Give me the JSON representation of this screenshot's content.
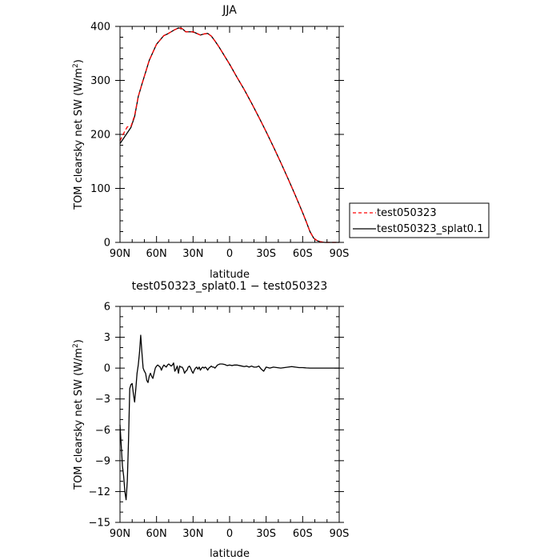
{
  "chart_data": [
    {
      "type": "line",
      "title": "JJA",
      "xlabel": "latitude",
      "ylabel": "TOM clearsky net SW (W/m²)",
      "ylabel_main": "TOM clearsky net SW (W/m",
      "ylabel_sup": "2",
      "ylabel_close": ")",
      "xlim": [
        90,
        -90
      ],
      "ylim": [
        0,
        400
      ],
      "xticks": [
        {
          "value": 90,
          "label": "90N"
        },
        {
          "value": 60,
          "label": "60N"
        },
        {
          "value": 30,
          "label": "30N"
        },
        {
          "value": 0,
          "label": "0"
        },
        {
          "value": -30,
          "label": "30S"
        },
        {
          "value": -60,
          "label": "60S"
        },
        {
          "value": -90,
          "label": "90S"
        }
      ],
      "yticks": [
        0,
        100,
        200,
        300,
        400
      ],
      "legend": {
        "placement": "right"
      },
      "series": [
        {
          "name": "test050323",
          "color": "#ff0000",
          "dash": "dashed",
          "x": [
            90,
            87,
            84,
            81,
            78,
            75,
            72,
            69,
            66,
            63,
            60,
            57,
            54,
            51,
            48,
            45,
            42,
            39,
            36,
            33,
            30,
            27,
            24,
            21,
            18,
            15,
            12,
            9,
            6,
            3,
            0,
            -6,
            -12,
            -18,
            -24,
            -30,
            -36,
            -42,
            -48,
            -54,
            -60,
            -63,
            -66,
            -69,
            -72,
            -75,
            -78,
            -81,
            -84,
            -87,
            -90
          ],
          "y": [
            188,
            202,
            214,
            215,
            235,
            270,
            293,
            315,
            337,
            352,
            367,
            375,
            383,
            386,
            390,
            394,
            397,
            396,
            390,
            390,
            390,
            387,
            384,
            386,
            387,
            382,
            373,
            363,
            352,
            341,
            330,
            306,
            283,
            258,
            232,
            205,
            177,
            148,
            118,
            87,
            55,
            38,
            20,
            8,
            3,
            1,
            0,
            0,
            0,
            0,
            0
          ]
        },
        {
          "name": "test050323_splat0.1",
          "color": "#000000",
          "dash": "solid",
          "x": [
            90,
            87,
            84,
            81,
            78,
            75,
            72,
            69,
            66,
            63,
            60,
            57,
            54,
            51,
            48,
            45,
            42,
            39,
            36,
            33,
            30,
            27,
            24,
            21,
            18,
            15,
            12,
            9,
            6,
            3,
            0,
            -6,
            -12,
            -18,
            -24,
            -30,
            -36,
            -42,
            -48,
            -54,
            -60,
            -63,
            -66,
            -69,
            -72,
            -75,
            -78,
            -81,
            -84,
            -87,
            -90
          ],
          "y": [
            183,
            193,
            203,
            213,
            233,
            270,
            293,
            315,
            337,
            352,
            367,
            375,
            383,
            386,
            390,
            394,
            397,
            396,
            390,
            390,
            390,
            387,
            384,
            386,
            387,
            382,
            373,
            363,
            352,
            341,
            330,
            306,
            283,
            258,
            232,
            205,
            177,
            148,
            118,
            87,
            55,
            38,
            20,
            8,
            3,
            1,
            0,
            0,
            0,
            0,
            0
          ]
        }
      ]
    },
    {
      "type": "line",
      "title": "test050323_splat0.1 − test050323",
      "xlabel": "latitude",
      "ylabel": "TOM clearsky net SW (W/m²)",
      "ylabel_main": "TOM clearsky net SW (W/m",
      "ylabel_sup": "2",
      "ylabel_close": ")",
      "xlim": [
        90,
        -90
      ],
      "ylim": [
        -15,
        6
      ],
      "xticks": [
        {
          "value": 90,
          "label": "90N"
        },
        {
          "value": 60,
          "label": "60N"
        },
        {
          "value": 30,
          "label": "30N"
        },
        {
          "value": 0,
          "label": "0"
        },
        {
          "value": -30,
          "label": "30S"
        },
        {
          "value": -60,
          "label": "60S"
        },
        {
          "value": -90,
          "label": "90S"
        }
      ],
      "yticks": [
        -15,
        -12,
        -9,
        -6,
        -3,
        0,
        3,
        6
      ],
      "series": [
        {
          "color": "#000000",
          "x": [
            90,
            89,
            88,
            87,
            86,
            85,
            84,
            83,
            82,
            81,
            80,
            79,
            78,
            77,
            76,
            75,
            74,
            73,
            72,
            71,
            70,
            69,
            68,
            67,
            66,
            65,
            64,
            63,
            62,
            61,
            60,
            59,
            58,
            57,
            56,
            55,
            54,
            53,
            52,
            51,
            50,
            49,
            48,
            47,
            46,
            45,
            44,
            43,
            42,
            41,
            40,
            39,
            38,
            37,
            36,
            35,
            34,
            33,
            32,
            31,
            30,
            29,
            28,
            27,
            26,
            25,
            24,
            23,
            22,
            21,
            20,
            19,
            18,
            17,
            16,
            15,
            14,
            13,
            12,
            10,
            8,
            6,
            4,
            2,
            0,
            -2,
            -4,
            -6,
            -8,
            -10,
            -12,
            -14,
            -16,
            -18,
            -20,
            -22,
            -24,
            -26,
            -28,
            -30,
            -33,
            -36,
            -39,
            -42,
            -45,
            -48,
            -51,
            -54,
            -57,
            -60,
            -63,
            -66,
            -69,
            -72,
            -75,
            -78,
            -81,
            -84,
            -87,
            -90
          ],
          "y": [
            -5.5,
            -7.5,
            -9.5,
            -10.5,
            -12,
            -12.8,
            -11,
            -7,
            -2,
            -1.6,
            -1.5,
            -2.5,
            -3.3,
            -2,
            -0.5,
            0.3,
            1.5,
            3.2,
            1.5,
            0,
            -0.3,
            -0.5,
            -1.2,
            -1.4,
            -0.8,
            -0.5,
            -0.8,
            -1,
            -0.5,
            0,
            0.2,
            0.3,
            0.2,
            0.1,
            -0.2,
            0.1,
            0.3,
            0.2,
            0.1,
            0.3,
            0.4,
            0.3,
            0.2,
            0.3,
            0.5,
            -0.3,
            -0.1,
            0.2,
            -0.5,
            0.2,
            0.1,
            0.1,
            -0.1,
            -0.5,
            -0.3,
            -0.2,
            0.1,
            0.2,
            0,
            -0.3,
            -0.5,
            -0.2,
            0,
            0.1,
            -0.1,
            0.1,
            -0.2,
            0,
            0.1,
            0,
            0.1,
            0,
            -0.2,
            0,
            0.1,
            0.2,
            0.1,
            0.1,
            0,
            0.3,
            0.4,
            0.4,
            0.35,
            0.25,
            0.3,
            0.25,
            0.3,
            0.3,
            0.25,
            0.2,
            0.15,
            0.2,
            0.1,
            0.2,
            0.1,
            0.1,
            0.2,
            -0.1,
            -0.3,
            0.1,
            0,
            0.1,
            0.05,
            0,
            0.05,
            0.1,
            0.15,
            0.1,
            0.05,
            0.05,
            0.02,
            0,
            0,
            0,
            0,
            0,
            0,
            0,
            0,
            0
          ]
        }
      ]
    }
  ]
}
